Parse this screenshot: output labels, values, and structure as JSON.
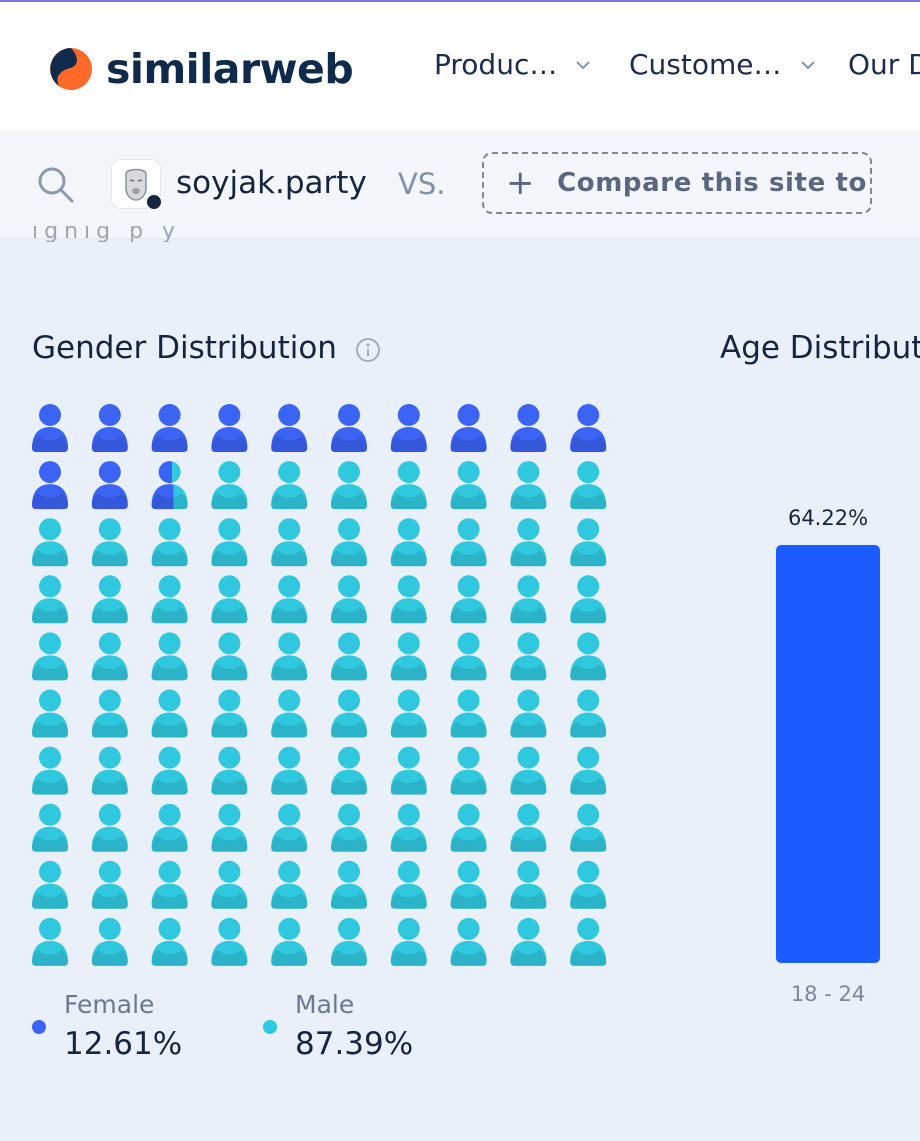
{
  "header": {
    "logo_text": "similarweb",
    "nav": [
      {
        "label": "Produc…"
      },
      {
        "label": "Custome…"
      },
      {
        "label": "Our D"
      }
    ]
  },
  "subbar": {
    "site": "soyjak.party",
    "vs_label": "VS.",
    "compare_label": "Compare this site to",
    "cut_off_text": "ighig p                          y"
  },
  "gender": {
    "title": "Gender Distribution",
    "female_color": "#3b63f4",
    "male_color": "#30c8de",
    "legend": [
      {
        "label": "Female",
        "value": "12.61%",
        "color": "#3b63f4"
      },
      {
        "label": "Male",
        "value": "87.39%",
        "color": "#2ccbe2"
      }
    ]
  },
  "age": {
    "title": "Age Distribut"
  },
  "chart_data": [
    {
      "type": "pictograph",
      "title": "Gender Distribution",
      "categories": [
        "Female",
        "Male"
      ],
      "values": [
        12.61,
        87.39
      ],
      "units": "percent"
    },
    {
      "type": "bar",
      "title": "Age Distribut",
      "categories": [
        "18 - 24"
      ],
      "values": [
        64.22
      ],
      "data_labels": [
        "64.22%"
      ],
      "color": "#1b5bff"
    }
  ]
}
